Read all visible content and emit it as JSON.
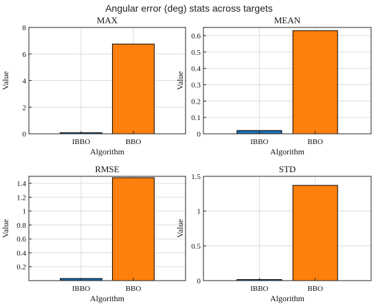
{
  "figure": {
    "title": "Angular error (deg) stats across targets"
  },
  "colors": {
    "IBBO": "#1f6fb0",
    "BBO": "#ff7f0e"
  },
  "chart_data": [
    {
      "type": "bar",
      "title": "MAX",
      "xlabel": "Algorithm",
      "ylabel": "Value",
      "categories": [
        "IBBO",
        "BBO"
      ],
      "values": [
        0.08,
        6.75
      ],
      "ylim": [
        0,
        8
      ],
      "yticks": [
        0,
        2,
        4,
        6,
        8
      ],
      "ytick_labels": [
        "0",
        "2",
        "4",
        "6",
        "8"
      ],
      "grid": true
    },
    {
      "type": "bar",
      "title": "MEAN",
      "xlabel": "Algorithm",
      "ylabel": "Value",
      "categories": [
        "IBBO",
        "BBO"
      ],
      "values": [
        0.02,
        0.63
      ],
      "ylim": [
        0,
        0.65
      ],
      "yticks": [
        0,
        0.1,
        0.2,
        0.3,
        0.4,
        0.5,
        0.6
      ],
      "ytick_labels": [
        "0",
        "0.1",
        "0.2",
        "0.3",
        "0.4",
        "0.5",
        "0.6"
      ],
      "grid": true
    },
    {
      "type": "bar",
      "title": "RMSE",
      "xlabel": "Algorithm",
      "ylabel": "Value",
      "categories": [
        "IBBO",
        "BBO"
      ],
      "values": [
        0.03,
        1.48
      ],
      "ylim": [
        0,
        1.5
      ],
      "yticks": [
        0.2,
        0.4,
        0.6,
        0.8,
        1,
        1.2,
        1.4
      ],
      "ytick_labels": [
        "0.2",
        "0.4",
        "0.6",
        "0.8",
        "1",
        "1.2",
        "1.4"
      ],
      "grid": true
    },
    {
      "type": "bar",
      "title": "STD",
      "xlabel": "Algorithm",
      "ylabel": "Value",
      "categories": [
        "IBBO",
        "BBO"
      ],
      "values": [
        0.015,
        1.37
      ],
      "ylim": [
        0,
        1.5
      ],
      "yticks": [
        0,
        0.5,
        1,
        1.5
      ],
      "ytick_labels": [
        "0",
        "0.5",
        "1",
        "1.5"
      ],
      "grid": true
    }
  ]
}
